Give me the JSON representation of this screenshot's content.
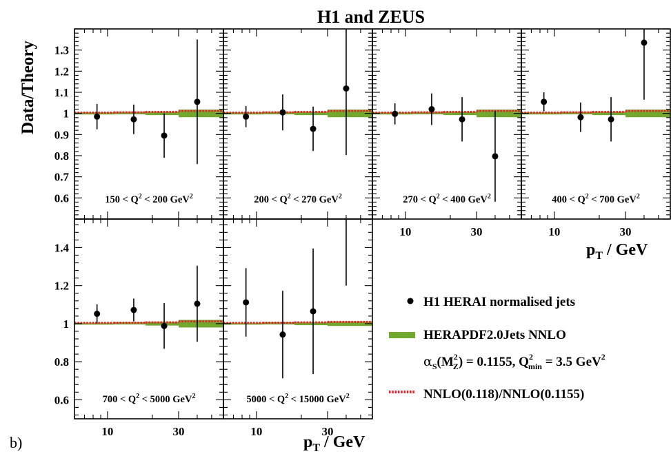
{
  "figure": {
    "title": "H1 and ZEUS",
    "panel_label": "b)",
    "ylabel": "Data/Theory",
    "xlabel_main": "p",
    "xlabel_sub": "T",
    "xlabel_unit": " / GeV"
  },
  "legend": {
    "data_label": "H1 HERAI normalised jets",
    "band_label": "HERAPDF2.0Jets NNLO",
    "band_param_1": "α",
    "band_param_2": "S",
    "band_param_3": "(M",
    "band_param_4": "2",
    "band_param_5": "Z",
    "band_param_6": ") = 0.1155, Q",
    "band_param_7": "2",
    "band_param_8": "min",
    "band_param_9": " = 3.5 GeV",
    "band_param_10": "2",
    "ratio_label": "NNLO(0.118)/NNLO(0.1155)"
  },
  "colors": {
    "data": "#000000",
    "band": "#72a82e",
    "ratio_line": "#e8222b"
  },
  "chart_data": [
    {
      "type": "scatter",
      "panel": "150 < Q² < 200 GeV²",
      "x": [
        8.5,
        15,
        24,
        40
      ],
      "y": [
        0.985,
        0.972,
        0.895,
        1.055
      ],
      "yerr_low": [
        0.06,
        0.07,
        0.105,
        0.295
      ],
      "yerr_high": [
        0.06,
        0.07,
        0.105,
        0.295
      ],
      "band_bins": [
        [
          6,
          11,
          1.0,
          0.005
        ],
        [
          11,
          18,
          1.002,
          0.006
        ],
        [
          18,
          30,
          1.0,
          0.008
        ],
        [
          30,
          60,
          1.0,
          0.018
        ]
      ],
      "ratio_bins": [
        [
          6,
          11,
          1.004
        ],
        [
          11,
          18,
          1.005
        ],
        [
          18,
          30,
          1.007
        ],
        [
          30,
          60,
          1.012
        ]
      ],
      "xlim": [
        6,
        60
      ],
      "ylim": [
        0.5,
        1.4
      ],
      "xscale": "log",
      "yticks": [
        0.6,
        0.7,
        0.8,
        0.9,
        1,
        1.1,
        1.2,
        1.3
      ]
    },
    {
      "type": "scatter",
      "panel": "200 < Q² < 270 GeV²",
      "x": [
        8.5,
        15,
        24,
        40
      ],
      "y": [
        0.985,
        1.005,
        0.927,
        1.118
      ],
      "yerr_low": [
        0.05,
        0.085,
        0.105,
        0.315
      ],
      "yerr_high": [
        0.05,
        0.085,
        0.105,
        0.315
      ],
      "band_bins": [
        [
          6,
          11,
          1.0,
          0.005
        ],
        [
          11,
          18,
          1.002,
          0.006
        ],
        [
          18,
          30,
          1.0,
          0.008
        ],
        [
          30,
          60,
          1.0,
          0.018
        ]
      ],
      "ratio_bins": [
        [
          6,
          11,
          1.004
        ],
        [
          11,
          18,
          1.005
        ],
        [
          18,
          30,
          1.007
        ],
        [
          30,
          60,
          1.012
        ]
      ],
      "xlim": [
        6,
        60
      ],
      "ylim": [
        0.5,
        1.4
      ],
      "xscale": "log"
    },
    {
      "type": "scatter",
      "panel": "270 < Q² < 400 GeV²",
      "x": [
        8.5,
        15,
        24,
        40
      ],
      "y": [
        0.998,
        1.02,
        0.972,
        0.797
      ],
      "yerr_low": [
        0.05,
        0.075,
        0.105,
        0.215
      ],
      "yerr_high": [
        0.05,
        0.075,
        0.105,
        0.215
      ],
      "band_bins": [
        [
          6,
          11,
          1.0,
          0.005
        ],
        [
          11,
          18,
          1.002,
          0.006
        ],
        [
          18,
          30,
          1.0,
          0.008
        ],
        [
          30,
          60,
          1.0,
          0.018
        ]
      ],
      "ratio_bins": [
        [
          6,
          11,
          1.004
        ],
        [
          11,
          18,
          1.005
        ],
        [
          18,
          30,
          1.007
        ],
        [
          30,
          60,
          1.012
        ]
      ],
      "xlim": [
        6,
        60
      ],
      "ylim": [
        0.5,
        1.4
      ],
      "xscale": "log",
      "xticks": [
        10,
        30
      ]
    },
    {
      "type": "scatter",
      "panel": "400 < Q² < 700 GeV²",
      "x": [
        8.5,
        15,
        24,
        40
      ],
      "y": [
        1.055,
        0.982,
        0.972,
        1.335
      ],
      "yerr_low": [
        0.045,
        0.07,
        0.105,
        0.27
      ],
      "yerr_high": [
        0.045,
        0.07,
        0.105,
        0.27
      ],
      "band_bins": [
        [
          6,
          11,
          1.0,
          0.005
        ],
        [
          11,
          18,
          1.002,
          0.006
        ],
        [
          18,
          30,
          1.0,
          0.008
        ],
        [
          30,
          60,
          1.0,
          0.018
        ]
      ],
      "ratio_bins": [
        [
          6,
          11,
          1.004
        ],
        [
          11,
          18,
          1.005
        ],
        [
          18,
          30,
          1.007
        ],
        [
          30,
          60,
          1.012
        ]
      ],
      "xlim": [
        6,
        60
      ],
      "ylim": [
        0.5,
        1.4
      ],
      "xscale": "log",
      "xticks": [
        10,
        30
      ]
    },
    {
      "type": "scatter",
      "panel": "700 < Q² < 5000 GeV²",
      "x": [
        8.5,
        15,
        24,
        40
      ],
      "y": [
        1.052,
        1.072,
        0.988,
        1.105
      ],
      "yerr_low": [
        0.05,
        0.06,
        0.12,
        0.2
      ],
      "yerr_high": [
        0.05,
        0.06,
        0.12,
        0.2
      ],
      "band_bins": [
        [
          6,
          11,
          1.0,
          0.005
        ],
        [
          11,
          18,
          1.002,
          0.006
        ],
        [
          18,
          30,
          1.0,
          0.01
        ],
        [
          30,
          60,
          1.0,
          0.02
        ]
      ],
      "ratio_bins": [
        [
          6,
          11,
          1.004
        ],
        [
          11,
          18,
          1.005
        ],
        [
          18,
          30,
          1.007
        ],
        [
          30,
          60,
          1.012
        ]
      ],
      "xlim": [
        6,
        60
      ],
      "ylim": [
        0.5,
        1.55
      ],
      "xscale": "log",
      "xticks": [
        10,
        30
      ],
      "yticks": [
        0.6,
        0.8,
        1,
        1.2,
        1.4
      ]
    },
    {
      "type": "scatter",
      "panel": "5000 < Q² < 15000 GeV²",
      "x": [
        8.5,
        15,
        24,
        40
      ],
      "y": [
        1.112,
        0.943,
        1.065,
        1.58
      ],
      "yerr_low": [
        0.18,
        0.23,
        0.33,
        0.38
      ],
      "yerr_high": [
        0.18,
        0.23,
        0.33,
        0.38
      ],
      "band_bins": [
        [
          6,
          11,
          1.0,
          0.005
        ],
        [
          11,
          18,
          1.002,
          0.006
        ],
        [
          18,
          30,
          1.0,
          0.008
        ],
        [
          30,
          60,
          1.0,
          0.012
        ]
      ],
      "ratio_bins": [
        [
          6,
          11,
          1.004
        ],
        [
          11,
          18,
          1.005
        ],
        [
          18,
          30,
          1.007
        ],
        [
          30,
          60,
          1.009
        ]
      ],
      "xlim": [
        6,
        60
      ],
      "ylim": [
        0.5,
        1.55
      ],
      "xscale": "log",
      "xticks": [
        10,
        30
      ]
    }
  ]
}
